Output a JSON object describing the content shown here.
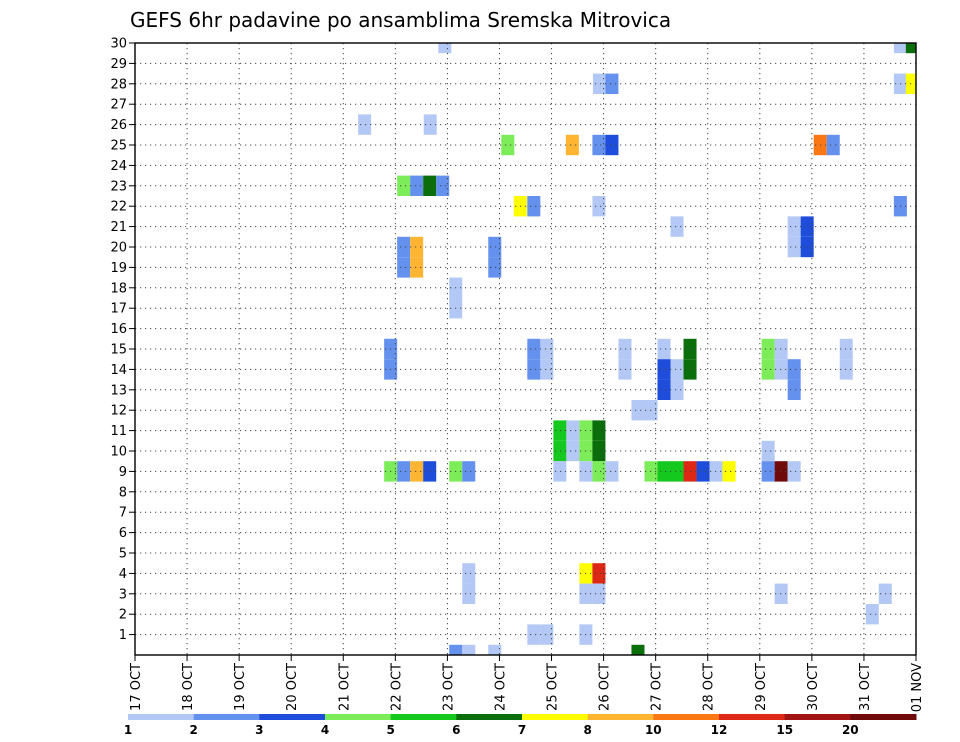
{
  "chart_data": {
    "type": "heatmap",
    "title": "GEFS 6hr padavine po ansamblima Sremska Mitrovica",
    "xlabel": "",
    "ylabel": "",
    "x_ticks": [
      "17 OCT",
      "18 OCT",
      "19 OCT",
      "20 OCT",
      "21 OCT",
      "22 OCT",
      "23 OCT",
      "24 OCT",
      "25 OCT",
      "26 OCT",
      "27 OCT",
      "28 OCT",
      "29 OCT",
      "30 OCT",
      "31 OCT",
      "01 NOV"
    ],
    "x_range_days": [
      0,
      15
    ],
    "y_ticks": [
      1,
      2,
      3,
      4,
      5,
      6,
      7,
      8,
      9,
      10,
      11,
      12,
      13,
      14,
      15,
      16,
      17,
      18,
      19,
      20,
      21,
      22,
      23,
      24,
      25,
      26,
      27,
      28,
      29,
      30
    ],
    "y_range": [
      0,
      30
    ],
    "grid": true,
    "colorbar": {
      "labels": [
        "1",
        "2",
        "3",
        "4",
        "5",
        "6",
        "7",
        "8",
        "10",
        "12",
        "15",
        "20"
      ],
      "colors": [
        "#b4c8f5",
        "#6490ee",
        "#1e4ddc",
        "#7ced58",
        "#14c81e",
        "#0a6e0a",
        "#ffff00",
        "#ffb432",
        "#fa7814",
        "#dc2814",
        "#a01414",
        "#6e0a0a"
      ]
    },
    "cells": [
      {
        "m": 30,
        "d": 5.95,
        "c": 0
      },
      {
        "m": 30,
        "d": 14.7,
        "c": 0
      },
      {
        "m": 30,
        "d": 14.93,
        "c": 5
      },
      {
        "m": 28,
        "d": 8.92,
        "c": 0
      },
      {
        "m": 28,
        "d": 9.16,
        "c": 1
      },
      {
        "m": 28,
        "d": 14.7,
        "c": 0
      },
      {
        "m": 28,
        "d": 14.93,
        "c": 6
      },
      {
        "m": 26,
        "d": 4.41,
        "c": 0
      },
      {
        "m": 26,
        "d": 5.67,
        "c": 0
      },
      {
        "m": 25,
        "d": 7.16,
        "c": 3
      },
      {
        "m": 25,
        "d": 8.4,
        "c": 7
      },
      {
        "m": 25,
        "d": 8.91,
        "c": 1
      },
      {
        "m": 25,
        "d": 9.16,
        "c": 2
      },
      {
        "m": 25,
        "d": 13.16,
        "c": 8
      },
      {
        "m": 25,
        "d": 13.41,
        "c": 1
      },
      {
        "m": 23,
        "d": 5.16,
        "c": 3
      },
      {
        "m": 23,
        "d": 5.41,
        "c": 1
      },
      {
        "m": 23,
        "d": 5.66,
        "c": 5
      },
      {
        "m": 23,
        "d": 5.91,
        "c": 1
      },
      {
        "m": 22,
        "d": 7.4,
        "c": 6
      },
      {
        "m": 22,
        "d": 7.66,
        "c": 1
      },
      {
        "m": 22,
        "d": 8.91,
        "c": 0
      },
      {
        "m": 22,
        "d": 14.7,
        "c": 1
      },
      {
        "m": 21,
        "d": 10.41,
        "c": 0
      },
      {
        "m": 21,
        "d": 12.66,
        "c": 0
      },
      {
        "m": 21,
        "d": 12.91,
        "c": 2
      },
      {
        "m": 20,
        "d": 12.66,
        "c": 0
      },
      {
        "m": 20,
        "d": 12.91,
        "c": 2
      },
      {
        "m": 20,
        "d": 5.16,
        "c": 1
      },
      {
        "m": 20,
        "d": 5.41,
        "c": 7
      },
      {
        "m": 20,
        "d": 6.91,
        "c": 1
      },
      {
        "m": 19,
        "d": 5.16,
        "c": 1
      },
      {
        "m": 19,
        "d": 5.41,
        "c": 7
      },
      {
        "m": 19,
        "d": 6.91,
        "c": 1
      },
      {
        "m": 18,
        "d": 6.16,
        "c": 0
      },
      {
        "m": 17,
        "d": 6.16,
        "c": 0
      },
      {
        "m": 15,
        "d": 4.91,
        "c": 1
      },
      {
        "m": 15,
        "d": 7.66,
        "c": 1
      },
      {
        "m": 15,
        "d": 7.91,
        "c": 0
      },
      {
        "m": 15,
        "d": 9.41,
        "c": 0
      },
      {
        "m": 15,
        "d": 10.16,
        "c": 0
      },
      {
        "m": 15,
        "d": 10.66,
        "c": 5
      },
      {
        "m": 15,
        "d": 12.16,
        "c": 3
      },
      {
        "m": 15,
        "d": 12.41,
        "c": 0
      },
      {
        "m": 15,
        "d": 13.66,
        "c": 0
      },
      {
        "m": 14,
        "d": 4.91,
        "c": 1
      },
      {
        "m": 14,
        "d": 7.66,
        "c": 1
      },
      {
        "m": 14,
        "d": 7.91,
        "c": 0
      },
      {
        "m": 14,
        "d": 9.41,
        "c": 0
      },
      {
        "m": 14,
        "d": 10.16,
        "c": 2
      },
      {
        "m": 14,
        "d": 10.41,
        "c": 0
      },
      {
        "m": 14,
        "d": 10.66,
        "c": 5
      },
      {
        "m": 14,
        "d": 12.16,
        "c": 3
      },
      {
        "m": 14,
        "d": 12.41,
        "c": 0
      },
      {
        "m": 14,
        "d": 12.66,
        "c": 1
      },
      {
        "m": 14,
        "d": 13.66,
        "c": 0
      },
      {
        "m": 13,
        "d": 10.16,
        "c": 2
      },
      {
        "m": 13,
        "d": 10.41,
        "c": 0
      },
      {
        "m": 13,
        "d": 12.66,
        "c": 1
      },
      {
        "m": 12,
        "d": 9.66,
        "c": 0
      },
      {
        "m": 12,
        "d": 9.91,
        "c": 0
      },
      {
        "m": 11,
        "d": 8.16,
        "c": 4
      },
      {
        "m": 11,
        "d": 8.41,
        "c": 0
      },
      {
        "m": 11,
        "d": 8.66,
        "c": 3
      },
      {
        "m": 11,
        "d": 8.91,
        "c": 5
      },
      {
        "m": 10,
        "d": 8.16,
        "c": 4
      },
      {
        "m": 10,
        "d": 8.41,
        "c": 0
      },
      {
        "m": 10,
        "d": 8.66,
        "c": 3
      },
      {
        "m": 10,
        "d": 8.91,
        "c": 5
      },
      {
        "m": 10,
        "d": 12.16,
        "c": 0
      },
      {
        "m": 9,
        "d": 4.91,
        "c": 3
      },
      {
        "m": 9,
        "d": 5.16,
        "c": 1
      },
      {
        "m": 9,
        "d": 5.41,
        "c": 7
      },
      {
        "m": 9,
        "d": 5.66,
        "c": 2
      },
      {
        "m": 9,
        "d": 6.16,
        "c": 3
      },
      {
        "m": 9,
        "d": 6.41,
        "c": 1
      },
      {
        "m": 9,
        "d": 8.16,
        "c": 0
      },
      {
        "m": 9,
        "d": 8.66,
        "c": 0
      },
      {
        "m": 9,
        "d": 8.91,
        "c": 3
      },
      {
        "m": 9,
        "d": 9.16,
        "c": 0
      },
      {
        "m": 9,
        "d": 9.91,
        "c": 3
      },
      {
        "m": 9,
        "d": 10.16,
        "c": 4
      },
      {
        "m": 9,
        "d": 10.41,
        "c": 4
      },
      {
        "m": 9,
        "d": 10.66,
        "c": 9
      },
      {
        "m": 9,
        "d": 10.91,
        "c": 2
      },
      {
        "m": 9,
        "d": 11.16,
        "c": 0
      },
      {
        "m": 9,
        "d": 11.41,
        "c": 6
      },
      {
        "m": 9,
        "d": 12.16,
        "c": 1
      },
      {
        "m": 9,
        "d": 12.41,
        "c": 11
      },
      {
        "m": 9,
        "d": 12.66,
        "c": 0
      },
      {
        "m": 4,
        "d": 6.41,
        "c": 0
      },
      {
        "m": 4,
        "d": 8.66,
        "c": 6
      },
      {
        "m": 4,
        "d": 8.91,
        "c": 9
      },
      {
        "m": 3,
        "d": 6.41,
        "c": 0
      },
      {
        "m": 3,
        "d": 8.66,
        "c": 0
      },
      {
        "m": 3,
        "d": 8.91,
        "c": 0
      },
      {
        "m": 3,
        "d": 12.41,
        "c": 0
      },
      {
        "m": 3,
        "d": 14.41,
        "c": 0
      },
      {
        "m": 2,
        "d": 14.16,
        "c": 0
      },
      {
        "m": 1,
        "d": 7.66,
        "c": 0
      },
      {
        "m": 1,
        "d": 7.91,
        "c": 0
      },
      {
        "m": 1,
        "d": 8.66,
        "c": 0
      },
      {
        "m": 0,
        "d": 6.16,
        "c": 1
      },
      {
        "m": 0,
        "d": 6.41,
        "c": 0
      },
      {
        "m": 0,
        "d": 6.91,
        "c": 0
      },
      {
        "m": 0,
        "d": 9.66,
        "c": 5
      }
    ]
  }
}
